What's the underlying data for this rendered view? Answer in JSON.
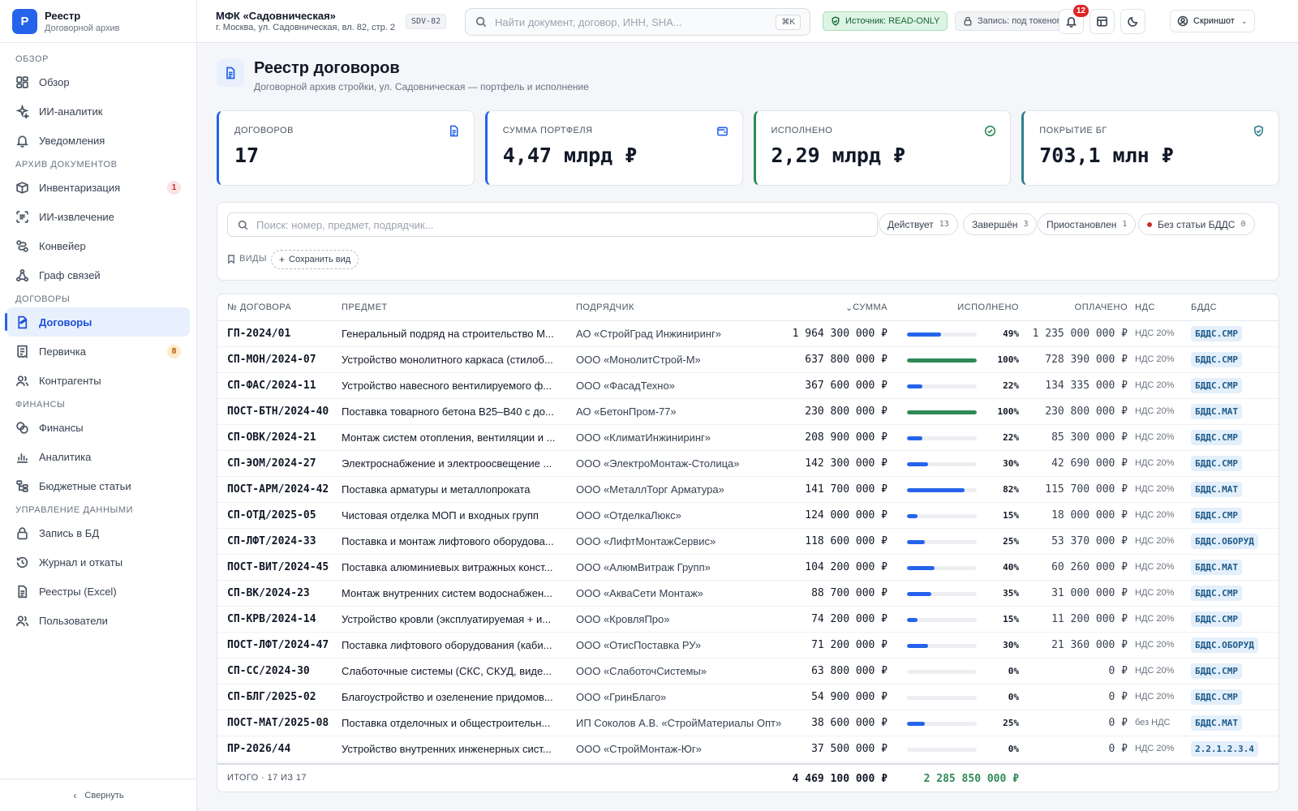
{
  "brand": {
    "logo": "Р",
    "title": "Реестр",
    "subtitle": "Договорной архив"
  },
  "sidebar": {
    "sections": [
      {
        "title": "ОБЗОР",
        "items": [
          {
            "label": "Обзор",
            "icon": "dashboard-icon"
          },
          {
            "label": "ИИ-аналитик",
            "icon": "sparkle-icon"
          },
          {
            "label": "Уведомления",
            "icon": "bell-icon"
          }
        ]
      },
      {
        "title": "АРХИВ ДОКУМЕНТОВ",
        "items": [
          {
            "label": "Инвентаризация",
            "icon": "box-icon",
            "badge": "1"
          },
          {
            "label": "ИИ-извлечение",
            "icon": "scan-icon"
          },
          {
            "label": "Конвейер",
            "icon": "pipeline-icon"
          },
          {
            "label": "Граф связей",
            "icon": "graph-icon"
          }
        ]
      },
      {
        "title": "ДОГОВОРЫ",
        "items": [
          {
            "label": "Договоры",
            "icon": "contract-icon",
            "active": true
          },
          {
            "label": "Первичка",
            "icon": "receipt-icon",
            "badge": "8"
          },
          {
            "label": "Контрагенты",
            "icon": "users-icon"
          }
        ]
      },
      {
        "title": "ФИНАНСЫ",
        "items": [
          {
            "label": "Финансы",
            "icon": "coins-icon"
          },
          {
            "label": "Аналитика",
            "icon": "bar-chart-icon"
          },
          {
            "label": "Бюджетные статьи",
            "icon": "tree-icon"
          }
        ]
      },
      {
        "title": "УПРАВЛЕНИЕ ДАННЫМИ",
        "items": [
          {
            "label": "Запись в БД",
            "icon": "lock-icon"
          },
          {
            "label": "Журнал и откаты",
            "icon": "history-icon"
          },
          {
            "label": "Реестры (Excel)",
            "icon": "file-icon"
          },
          {
            "label": "Пользователи",
            "icon": "users-icon"
          }
        ]
      }
    ],
    "collapse_label": "Свернуть"
  },
  "topbar": {
    "project_title": "МФК «Садовническая»",
    "project_address": "г. Москва, ул. Садовническая, вл. 82, стр. 2",
    "project_code": "SDV-82",
    "search_placeholder": "Найти документ, договор, ИНН, SHA...",
    "search_shortcut": "⌘K",
    "source_label": "Источник: READ-ONLY",
    "write_label": "Запись: под токеном",
    "notifications_count": "12",
    "user_label": "Скриншот"
  },
  "page": {
    "title": "Реестр договоров",
    "subtitle": "Договорной архив стройки, ул. Садовническая — портфель и исполнение"
  },
  "kpis": [
    {
      "label": "ДОГОВОРОВ",
      "value": "17",
      "accent": "#2563eb",
      "icon": "document-icon"
    },
    {
      "label": "СУММА ПОРТФЕЛЯ",
      "value": "4,47 млрд ₽",
      "accent": "#2563eb",
      "icon": "wallet-icon"
    },
    {
      "label": "ИСПОЛНЕНО",
      "value": "2,29 млрд ₽",
      "accent": "#2f8a57",
      "icon": "check-circle-icon"
    },
    {
      "label": "ПОКРЫТИЕ БГ",
      "value": "703,1 млн ₽",
      "accent": "#2e7e8c",
      "icon": "shield-check-icon"
    }
  ],
  "filters": {
    "search_placeholder": "Поиск: номер, предмет, подрядчик...",
    "chips": [
      {
        "label": "Действует",
        "count": "13"
      },
      {
        "label": "Завершён",
        "count": "3"
      },
      {
        "label": "Приостановлен",
        "count": "1"
      },
      {
        "label": "Без статьи БДДС",
        "count": "0",
        "dot": "#c53030"
      }
    ],
    "views_label": "ВИДЫ",
    "save_view_label": "Сохранить вид"
  },
  "table": {
    "headers": {
      "number": "№ ДОГОВОРА",
      "subject": "ПРЕДМЕТ",
      "contractor": "ПОДРЯДЧИК",
      "sum": "СУММА",
      "executed": "ИСПОЛНЕНО",
      "paid": "ОПЛАЧЕНО",
      "vat": "НДС",
      "bdds": "БДДС"
    },
    "rows": [
      {
        "number": "ГП-2024/01",
        "subject": "Генеральный подряд на строительство М...",
        "contractor": "АО «СтройГрад Инжиниринг»",
        "sum": "1 964 300 000 ₽",
        "executed_pct": 49,
        "executed_label": "49%",
        "paid": "1 235 000 000 ₽",
        "vat": "НДС 20%",
        "bdds": "БДДС.СМР"
      },
      {
        "number": "СП-МОН/2024-07",
        "subject": "Устройство монолитного каркаса (стилоб...",
        "contractor": "ООО «МонолитСтрой-М»",
        "sum": "637 800 000 ₽",
        "executed_pct": 100,
        "executed_label": "100%",
        "paid": "728 390 000 ₽",
        "vat": "НДС 20%",
        "bdds": "БДДС.СМР"
      },
      {
        "number": "СП-ФАС/2024-11",
        "subject": "Устройство навесного вентилируемого ф...",
        "contractor": "ООО «ФасадТехно»",
        "sum": "367 600 000 ₽",
        "executed_pct": 22,
        "executed_label": "22%",
        "paid": "134 335 000 ₽",
        "vat": "НДС 20%",
        "bdds": "БДДС.СМР"
      },
      {
        "number": "ПОСТ-БТН/2024-40",
        "subject": "Поставка товарного бетона В25–В40 с до...",
        "contractor": "АО «БетонПром-77»",
        "sum": "230 800 000 ₽",
        "executed_pct": 100,
        "executed_label": "100%",
        "paid": "230 800 000 ₽",
        "vat": "НДС 20%",
        "bdds": "БДДС.МАТ"
      },
      {
        "number": "СП-ОВК/2024-21",
        "subject": "Монтаж систем отопления, вентиляции и ...",
        "contractor": "ООО «КлиматИнжиниринг»",
        "sum": "208 900 000 ₽",
        "executed_pct": 22,
        "executed_label": "22%",
        "paid": "85 300 000 ₽",
        "vat": "НДС 20%",
        "bdds": "БДДС.СМР"
      },
      {
        "number": "СП-ЭОМ/2024-27",
        "subject": "Электроснабжение и электроосвещение ...",
        "contractor": "ООО «ЭлектроМонтаж-Столица»",
        "sum": "142 300 000 ₽",
        "executed_pct": 30,
        "executed_label": "30%",
        "paid": "42 690 000 ₽",
        "vat": "НДС 20%",
        "bdds": "БДДС.СМР"
      },
      {
        "number": "ПОСТ-АРМ/2024-42",
        "subject": "Поставка арматуры и металлопроката",
        "contractor": "ООО «МеталлТорг Арматура»",
        "sum": "141 700 000 ₽",
        "executed_pct": 82,
        "executed_label": "82%",
        "paid": "115 700 000 ₽",
        "vat": "НДС 20%",
        "bdds": "БДДС.МАТ"
      },
      {
        "number": "СП-ОТД/2025-05",
        "subject": "Чистовая отделка МОП и входных групп",
        "contractor": "ООО «ОтделкаЛюкс»",
        "sum": "124 000 000 ₽",
        "executed_pct": 15,
        "executed_label": "15%",
        "paid": "18 000 000 ₽",
        "vat": "НДС 20%",
        "bdds": "БДДС.СМР"
      },
      {
        "number": "СП-ЛФТ/2024-33",
        "subject": "Поставка и монтаж лифтового оборудова...",
        "contractor": "ООО «ЛифтМонтажСервис»",
        "sum": "118 600 000 ₽",
        "executed_pct": 25,
        "executed_label": "25%",
        "paid": "53 370 000 ₽",
        "vat": "НДС 20%",
        "bdds": "БДДС.ОБОРУД"
      },
      {
        "number": "ПОСТ-ВИТ/2024-45",
        "subject": "Поставка алюминиевых витражных конст...",
        "contractor": "ООО «АлюмВитраж Групп»",
        "sum": "104 200 000 ₽",
        "executed_pct": 40,
        "executed_label": "40%",
        "paid": "60 260 000 ₽",
        "vat": "НДС 20%",
        "bdds": "БДДС.МАТ"
      },
      {
        "number": "СП-ВК/2024-23",
        "subject": "Монтаж внутренних систем водоснабжен...",
        "contractor": "ООО «АкваСети Монтаж»",
        "sum": "88 700 000 ₽",
        "executed_pct": 35,
        "executed_label": "35%",
        "paid": "31 000 000 ₽",
        "vat": "НДС 20%",
        "bdds": "БДДС.СМР"
      },
      {
        "number": "СП-КРВ/2024-14",
        "subject": "Устройство кровли (эксплуатируемая + и...",
        "contractor": "ООО «КровляПро»",
        "sum": "74 200 000 ₽",
        "executed_pct": 15,
        "executed_label": "15%",
        "paid": "11 200 000 ₽",
        "vat": "НДС 20%",
        "bdds": "БДДС.СМР"
      },
      {
        "number": "ПОСТ-ЛФТ/2024-47",
        "subject": "Поставка лифтового оборудования (каби...",
        "contractor": "ООО «ОтисПоставка РУ»",
        "sum": "71 200 000 ₽",
        "executed_pct": 30,
        "executed_label": "30%",
        "paid": "21 360 000 ₽",
        "vat": "НДС 20%",
        "bdds": "БДДС.ОБОРУД"
      },
      {
        "number": "СП-СС/2024-30",
        "subject": "Слаботочные системы (СКС, СКУД, виде...",
        "contractor": "ООО «СлаботочСистемы»",
        "sum": "63 800 000 ₽",
        "executed_pct": 0,
        "executed_label": "0%",
        "paid": "0 ₽",
        "vat": "НДС 20%",
        "bdds": "БДДС.СМР"
      },
      {
        "number": "СП-БЛГ/2025-02",
        "subject": "Благоустройство и озеленение придомов...",
        "contractor": "ООО «ГринБлаго»",
        "sum": "54 900 000 ₽",
        "executed_pct": 0,
        "executed_label": "0%",
        "paid": "0 ₽",
        "vat": "НДС 20%",
        "bdds": "БДДС.СМР"
      },
      {
        "number": "ПОСТ-МАТ/2025-08",
        "subject": "Поставка отделочных и общестроительн...",
        "contractor": "ИП Соколов А.В. «СтройМатериалы Опт»",
        "sum": "38 600 000 ₽",
        "executed_pct": 25,
        "executed_label": "25%",
        "paid": "0 ₽",
        "vat": "без НДС",
        "bdds": "БДДС.МАТ"
      },
      {
        "number": "ПР-2026/44",
        "subject": "Устройство внутренних инженерных сист...",
        "contractor": "ООО «СтройМонтаж-Юг»",
        "sum": "37 500 000 ₽",
        "executed_pct": 0,
        "executed_label": "0%",
        "paid": "0 ₽",
        "vat": "НДС 20%",
        "bdds": "2.2.1.2.3.4"
      }
    ],
    "footer": {
      "label": "ИТОГО · 17 ИЗ 17",
      "sum": "4 469 100 000 ₽",
      "executed": "2 285 850 000 ₽"
    }
  },
  "colors": {
    "accent": "#2563eb",
    "success": "#2f8a57",
    "danger": "#dc2626"
  }
}
